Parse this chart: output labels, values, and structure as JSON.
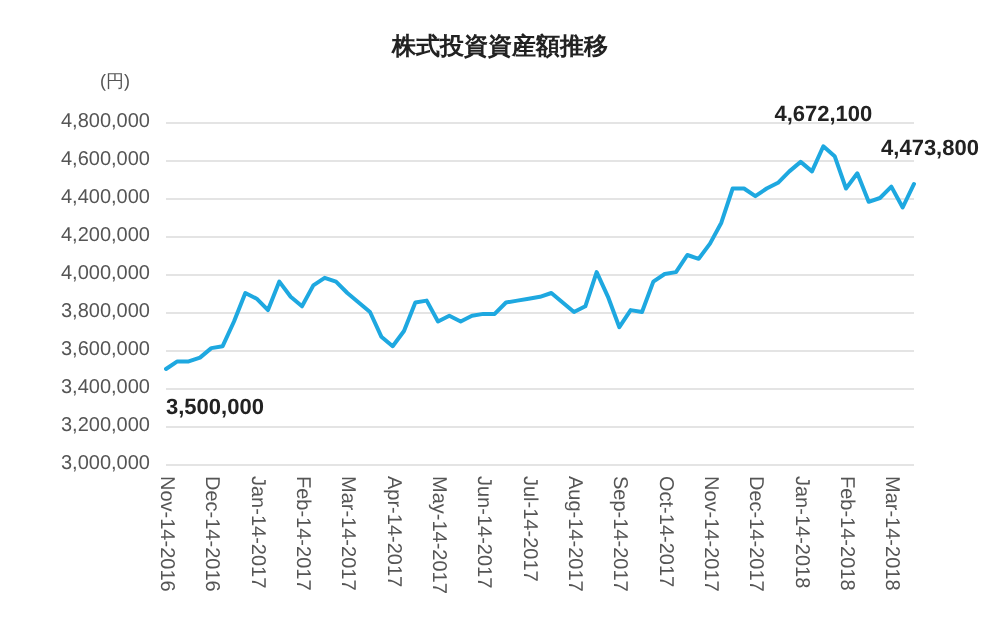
{
  "chart_data": {
    "type": "line",
    "title": "株式投資資産額推移",
    "ylabel": "(円)",
    "categories": [
      "Nov-14-2016",
      null,
      null,
      null,
      "Dec-14-2016",
      null,
      null,
      null,
      "Jan-14-2017",
      null,
      null,
      null,
      "Feb-14-2017",
      null,
      null,
      null,
      "Mar-14-2017",
      null,
      null,
      null,
      "Apr-14-2017",
      null,
      null,
      null,
      "May-14-2017",
      null,
      null,
      null,
      "Jun-14-2017",
      null,
      null,
      null,
      "Jul-14-2017",
      null,
      null,
      null,
      "Aug-14-2017",
      null,
      null,
      null,
      "Sep-14-2017",
      null,
      null,
      null,
      "Oct-14-2017",
      null,
      null,
      null,
      "Nov-14-2017",
      null,
      null,
      null,
      "Dec-14-2017",
      null,
      null,
      null,
      "Jan-14-2018",
      null,
      null,
      null,
      "Feb-14-2018",
      null,
      null,
      null,
      "Mar-14-2018",
      null,
      null
    ],
    "series": [
      {
        "color": "#1ea8e0",
        "values": [
          3500000,
          3540000,
          3540000,
          3560000,
          3610000,
          3620000,
          3750000,
          3900000,
          3870000,
          3810000,
          3960000,
          3880000,
          3830000,
          3940000,
          3980000,
          3960000,
          3900000,
          3850000,
          3800000,
          3670000,
          3620000,
          3700000,
          3850000,
          3860000,
          3750000,
          3780000,
          3750000,
          3780000,
          3790000,
          3790000,
          3850000,
          3860000,
          3870000,
          3880000,
          3900000,
          3850000,
          3800000,
          3830000,
          4010000,
          3880000,
          3720000,
          3810000,
          3800000,
          3960000,
          4000000,
          4010000,
          4100000,
          4080000,
          4160000,
          4270000,
          4450000,
          4450000,
          4410000,
          4450000,
          4480000,
          4540000,
          4590000,
          4540000,
          4672100,
          4620000,
          4450000,
          4530000,
          4380000,
          4400000,
          4460000,
          4350000,
          4473800
        ],
        "value_labels": [
          "3,500,000",
          null,
          null,
          null,
          null,
          null,
          null,
          null,
          null,
          null,
          null,
          null,
          null,
          null,
          null,
          null,
          null,
          null,
          null,
          null,
          null,
          null,
          null,
          null,
          null,
          null,
          null,
          null,
          null,
          null,
          null,
          null,
          null,
          null,
          null,
          null,
          null,
          null,
          null,
          null,
          null,
          null,
          null,
          null,
          null,
          null,
          null,
          null,
          null,
          null,
          null,
          null,
          null,
          null,
          null,
          null,
          null,
          null,
          "4,672,100",
          null,
          null,
          null,
          null,
          null,
          null,
          null,
          "4,473,800"
        ]
      }
    ],
    "ylim": [
      3000000,
      4800000
    ],
    "yticks": [
      {
        "value": 3000000,
        "label": "3,000,000"
      },
      {
        "value": 3200000,
        "label": "3,200,000"
      },
      {
        "value": 3400000,
        "label": "3,400,000"
      },
      {
        "value": 3600000,
        "label": "3,600,000"
      },
      {
        "value": 3800000,
        "label": "3,800,000"
      },
      {
        "value": 4000000,
        "label": "4,000,000"
      },
      {
        "value": 4200000,
        "label": "4,200,000"
      },
      {
        "value": 4400000,
        "label": "4,400,000"
      },
      {
        "value": 4600000,
        "label": "4,600,000"
      },
      {
        "value": 4800000,
        "label": "4,800,000"
      }
    ],
    "grid": "y",
    "marker": "none",
    "line_style": "solid"
  }
}
